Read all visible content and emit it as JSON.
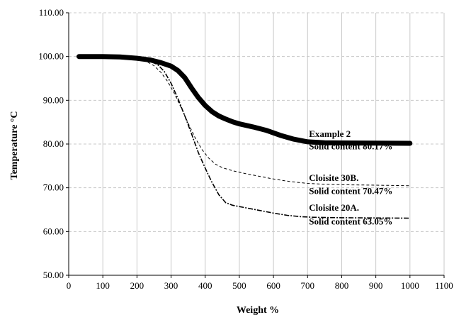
{
  "chart_data": {
    "type": "line",
    "xlabel": "Weight %",
    "ylabel": "Temperature °C",
    "xlim": [
      0,
      1100
    ],
    "ylim": [
      50,
      110
    ],
    "xticks": [
      0,
      100,
      200,
      300,
      400,
      500,
      600,
      700,
      800,
      900,
      1000,
      1100
    ],
    "xtick_labels": [
      "0",
      "100",
      "200",
      "300",
      "400",
      "500",
      "600",
      "700",
      "800",
      "900",
      "1000",
      "1100"
    ],
    "yticks": [
      50,
      60,
      70,
      80,
      90,
      100,
      110
    ],
    "ytick_labels": [
      "50.00",
      "60.00",
      "70.00",
      "80.00",
      "90.00",
      "100.00",
      "110.00"
    ],
    "grid": {
      "vertical": true,
      "horizontal": "dashed"
    },
    "series": [
      {
        "style": "thick-solid",
        "points": [
          [
            30,
            100
          ],
          [
            100,
            100
          ],
          [
            150,
            99.9
          ],
          [
            200,
            99.6
          ],
          [
            240,
            99.2
          ],
          [
            270,
            98.6
          ],
          [
            300,
            97.8
          ],
          [
            320,
            96.8
          ],
          [
            340,
            95.2
          ],
          [
            360,
            92.8
          ],
          [
            380,
            90.6
          ],
          [
            400,
            88.8
          ],
          [
            420,
            87.4
          ],
          [
            440,
            86.4
          ],
          [
            460,
            85.7
          ],
          [
            480,
            85.1
          ],
          [
            500,
            84.6
          ],
          [
            540,
            83.9
          ],
          [
            580,
            83.1
          ],
          [
            620,
            82.0
          ],
          [
            660,
            81.1
          ],
          [
            700,
            80.5
          ],
          [
            750,
            80.3
          ],
          [
            800,
            80.25
          ],
          [
            900,
            80.2
          ],
          [
            1000,
            80.17
          ]
        ]
      },
      {
        "style": "thin-dashed",
        "points": [
          [
            30,
            100
          ],
          [
            100,
            100
          ],
          [
            150,
            99.9
          ],
          [
            200,
            99.5
          ],
          [
            230,
            98.8
          ],
          [
            250,
            97.9
          ],
          [
            270,
            96.4
          ],
          [
            290,
            94.3
          ],
          [
            310,
            91.5
          ],
          [
            330,
            88.2
          ],
          [
            350,
            84.8
          ],
          [
            370,
            81.5
          ],
          [
            390,
            78.8
          ],
          [
            410,
            76.8
          ],
          [
            430,
            75.4
          ],
          [
            450,
            74.6
          ],
          [
            480,
            73.9
          ],
          [
            520,
            73.2
          ],
          [
            560,
            72.6
          ],
          [
            600,
            72.0
          ],
          [
            650,
            71.4
          ],
          [
            700,
            71.0
          ],
          [
            750,
            70.8
          ],
          [
            800,
            70.7
          ],
          [
            900,
            70.6
          ],
          [
            1000,
            70.47
          ]
        ]
      },
      {
        "style": "dash-dot",
        "points": [
          [
            30,
            100
          ],
          [
            100,
            100
          ],
          [
            150,
            99.9
          ],
          [
            200,
            99.7
          ],
          [
            230,
            99.2
          ],
          [
            260,
            98.2
          ],
          [
            280,
            96.6
          ],
          [
            300,
            93.9
          ],
          [
            320,
            90.4
          ],
          [
            340,
            86.5
          ],
          [
            360,
            82.3
          ],
          [
            380,
            78.0
          ],
          [
            400,
            74.5
          ],
          [
            420,
            71.2
          ],
          [
            440,
            68.4
          ],
          [
            460,
            66.6
          ],
          [
            480,
            66.0
          ],
          [
            520,
            65.4
          ],
          [
            560,
            64.8
          ],
          [
            600,
            64.2
          ],
          [
            640,
            63.7
          ],
          [
            680,
            63.4
          ],
          [
            720,
            63.25
          ],
          [
            800,
            63.15
          ],
          [
            900,
            63.1
          ],
          [
            1000,
            63.05
          ]
        ]
      }
    ],
    "annotations": [
      {
        "lines": [
          "Example  2",
          "Solid content 80.17%"
        ],
        "anchor_x": 700,
        "line_y": [
          82.4,
          79.6
        ]
      },
      {
        "lines": [
          "Cloisite 30B.",
          "Solid content 70.47%"
        ],
        "anchor_x": 700,
        "line_y": [
          72.4,
          69.4
        ]
      },
      {
        "lines": [
          "Cloisite 20A.",
          "Solid content 63.05%"
        ],
        "anchor_x": 700,
        "line_y": [
          65.6,
          62.4
        ]
      }
    ]
  }
}
